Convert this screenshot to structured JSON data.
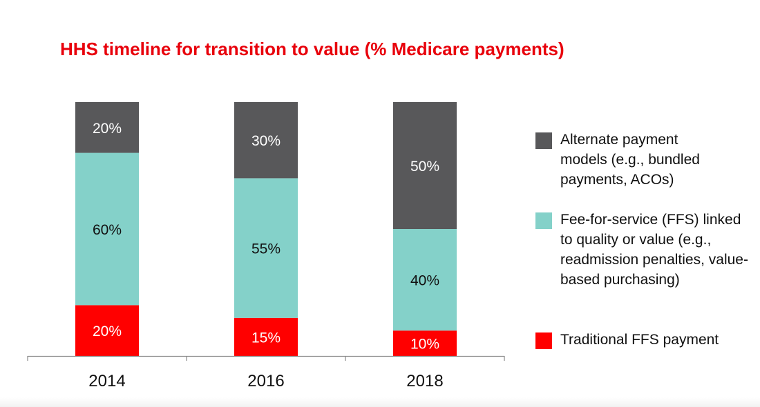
{
  "chart_data": {
    "type": "bar",
    "stacked": true,
    "title": "HHS timeline for transition to value (% Medicare payments)",
    "categories": [
      "2014",
      "2016",
      "2018"
    ],
    "ylim": [
      0,
      100
    ],
    "grid": false,
    "legend_position": "right",
    "series": [
      {
        "name": "Traditional FFS payment",
        "color": "#ff0000",
        "text_color": "#ffffff",
        "values": [
          20,
          15,
          10
        ],
        "labels": [
          "20%",
          "15%",
          "10%"
        ]
      },
      {
        "name": "Fee-for-service (FFS) linked to quality or value (e.g., readmission penalties, value-based purchasing)",
        "color": "#84d1c9",
        "text_color": "#111111",
        "values": [
          60,
          55,
          40
        ],
        "labels": [
          "60%",
          "55%",
          "40%"
        ]
      },
      {
        "name": "Alternate payment models (e.g., bundled payments, ACOs)",
        "color": "#58585a",
        "text_color": "#ffffff",
        "values": [
          20,
          30,
          50
        ],
        "labels": [
          "20%",
          "30%",
          "50%"
        ]
      }
    ]
  },
  "legend": {
    "items": [
      {
        "label": "Alternate payment models (e.g., bundled payments, ACOs)",
        "color": "#58585a"
      },
      {
        "label": "Fee-for-service (FFS) linked to quality or value (e.g., readmission penalties, value-based purchasing)",
        "color": "#84d1c9"
      },
      {
        "label": "Traditional FFS payment",
        "color": "#ff0000"
      }
    ]
  },
  "colors": {
    "title": "#e8000b",
    "axis": "#888888"
  }
}
